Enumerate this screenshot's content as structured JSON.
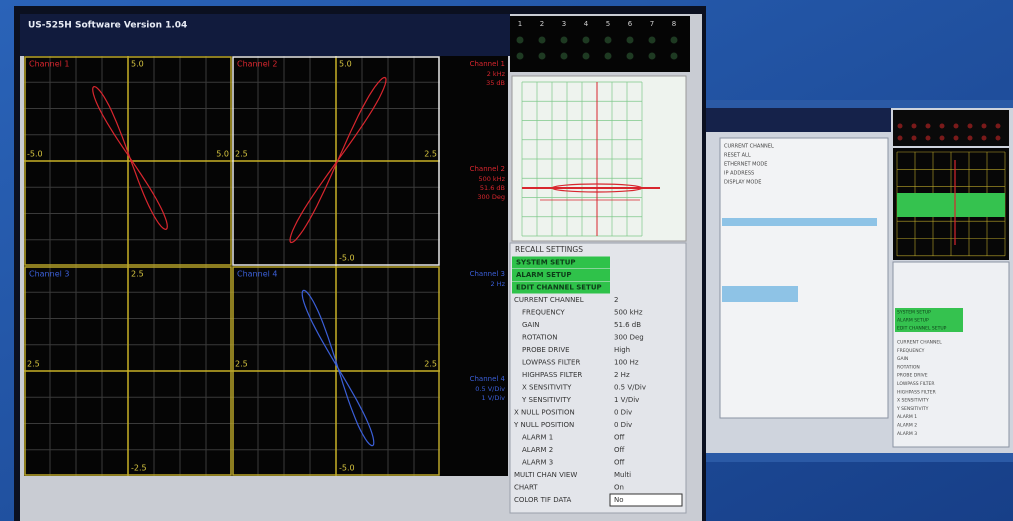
{
  "window": {
    "title": "US-525H Software Version 1.04"
  },
  "channels": [
    {
      "label": "Channel 1",
      "top": "5.0",
      "left": "-5.0",
      "right": "5.0"
    },
    {
      "label": "Channel 2",
      "top": "5.0",
      "left": "2.5",
      "right": "2.5",
      "bottom": "-5.0"
    },
    {
      "label": "Channel 3",
      "top": "2.5",
      "left": "2.5",
      "bottom": "-2.5"
    },
    {
      "label": "Channel 4",
      "left": "2.5",
      "right": "2.5",
      "bottom": "-5.0"
    }
  ],
  "info_column": [
    {
      "header": "Channel 1",
      "lines": [
        "2 kHz",
        "35 dB"
      ]
    },
    {
      "header": "Channel 2",
      "lines": [
        "500 kHz",
        "51.6 dB",
        "300 Deg"
      ]
    },
    {
      "header": "Channel 3",
      "lines": [
        "2 Hz"
      ]
    },
    {
      "header": "Channel 4",
      "lines": [
        "0.5 V/Div",
        "1 V/Div"
      ]
    }
  ],
  "channel_numbers": [
    "1",
    "2",
    "3",
    "4",
    "5",
    "6",
    "7",
    "8"
  ],
  "settings": {
    "recall": "RECALL SETTINGS",
    "buttons": [
      "SYSTEM SETUP",
      "ALARM SETUP",
      "EDIT CHANNEL SETUP"
    ],
    "rows": [
      [
        "CURRENT CHANNEL",
        "2"
      ],
      [
        "FREQUENCY",
        "500 kHz"
      ],
      [
        "GAIN",
        "51.6 dB"
      ],
      [
        "ROTATION",
        "300 Deg"
      ],
      [
        "PROBE DRIVE",
        "High"
      ],
      [
        "LOWPASS FILTER",
        "100 Hz"
      ],
      [
        "HIGHPASS FILTER",
        "2 Hz"
      ],
      [
        "X SENSITIVITY",
        "0.5 V/Div"
      ],
      [
        "Y SENSITIVITY",
        "1 V/Div"
      ],
      [
        "X NULL POSITION",
        "0 Div"
      ],
      [
        "Y NULL POSITION",
        "0 Div"
      ],
      [
        "ALARM 1",
        "Off"
      ],
      [
        "ALARM 2",
        "Off"
      ],
      [
        "ALARM 3",
        "Off"
      ],
      [
        "MULTI CHAN VIEW",
        "Multi"
      ],
      [
        "CHART",
        "On"
      ],
      [
        "COLOR TIF DATA",
        "No"
      ]
    ]
  },
  "second_screen": {
    "list": [
      "CURRENT CHANNEL",
      "RESET ALL",
      "ETHERNET MODE",
      "IP ADDRESS",
      "DISPLAY MODE"
    ],
    "buttons": [
      "SYSTEM SETUP",
      "ALARM SETUP",
      "EDIT CHANNEL SETUP"
    ],
    "rows": [
      "CURRENT CHANNEL",
      "FREQUENCY",
      "GAIN",
      "ROTATION",
      "PROBE DRIVE",
      "LOWPASS FILTER",
      "HIGHPASS FILTER",
      "X SENSITIVITY",
      "Y SENSITIVITY",
      "ALARM 1",
      "ALARM 2",
      "ALARM 3"
    ]
  }
}
